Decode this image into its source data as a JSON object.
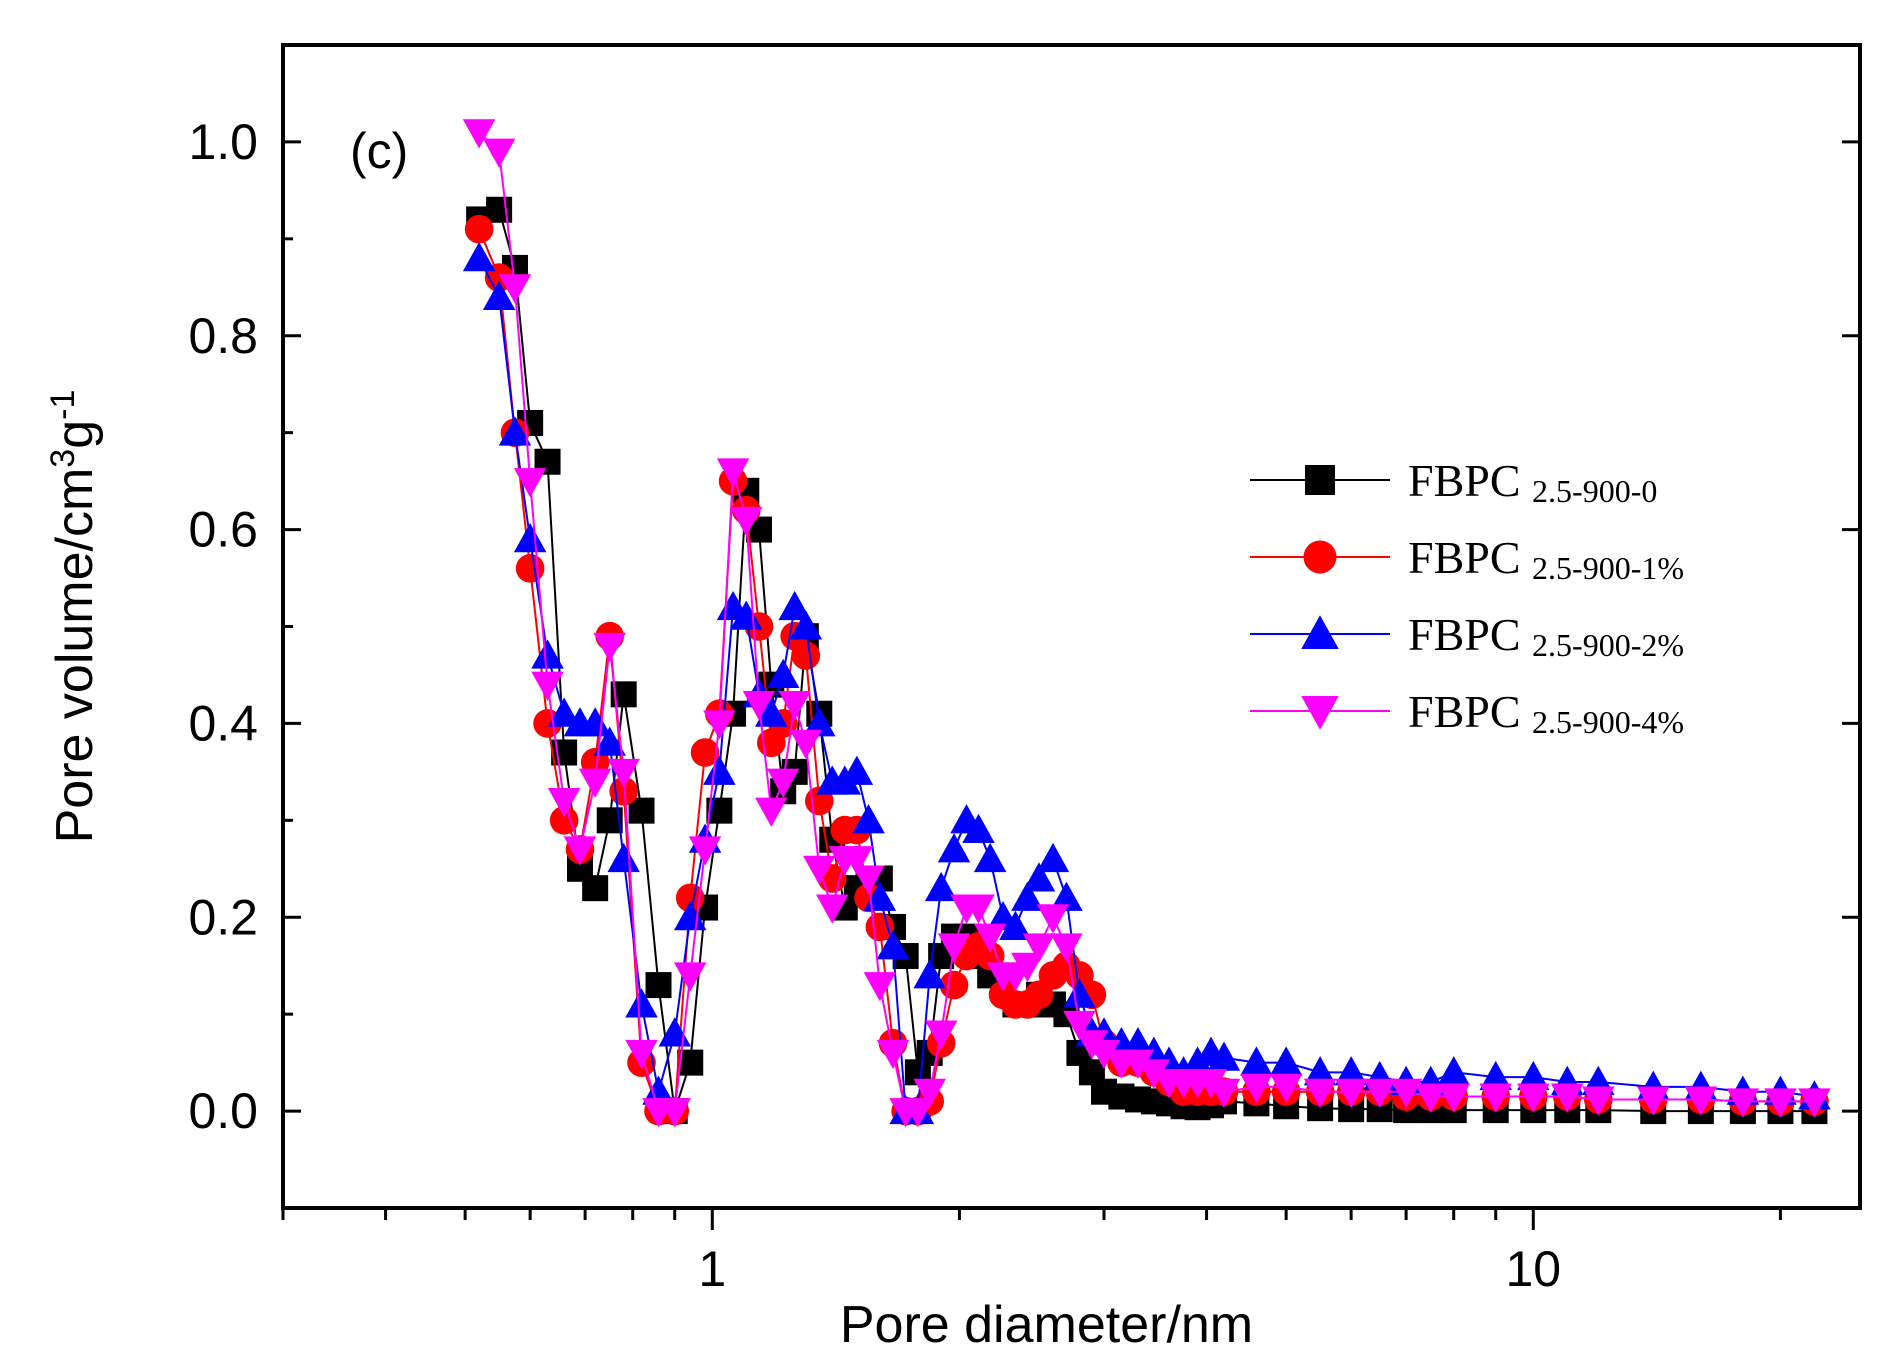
{
  "chart_data": {
    "type": "scatter",
    "panel_label": "(c)",
    "title": "",
    "xlabel": "Pore diameter/nm",
    "ylabel": {
      "prefix": "Pore volume/cm",
      "sup1": "3",
      "mid": "g",
      "sup2": "-1"
    },
    "xscale": "log",
    "xlim": [
      0.3,
      25
    ],
    "ylim": [
      -0.1,
      1.1
    ],
    "xticks": [
      {
        "value": 1,
        "label": "1"
      },
      {
        "value": 10,
        "label": "10"
      }
    ],
    "yticks": [
      {
        "value": 0.0,
        "label": "0.0"
      },
      {
        "value": 0.2,
        "label": "0.2"
      },
      {
        "value": 0.4,
        "label": "0.4"
      },
      {
        "value": 0.6,
        "label": "0.6"
      },
      {
        "value": 0.8,
        "label": "0.8"
      },
      {
        "value": 1.0,
        "label": "1.0"
      }
    ],
    "legend_position": "right, upper-middle",
    "series": [
      {
        "name": "FBPC",
        "subscript": "2.5-900-0",
        "color": "#000000",
        "marker": "square",
        "x": [
          0.52,
          0.55,
          0.575,
          0.6,
          0.63,
          0.66,
          0.69,
          0.72,
          0.75,
          0.78,
          0.82,
          0.86,
          0.9,
          0.94,
          0.98,
          1.02,
          1.06,
          1.1,
          1.14,
          1.18,
          1.22,
          1.26,
          1.3,
          1.35,
          1.4,
          1.45,
          1.5,
          1.55,
          1.6,
          1.66,
          1.72,
          1.78,
          1.84,
          1.9,
          1.97,
          2.04,
          2.11,
          2.18,
          2.26,
          2.34,
          2.42,
          2.5,
          2.6,
          2.7,
          2.8,
          2.9,
          3.0,
          3.15,
          3.3,
          3.45,
          3.6,
          3.75,
          3.9,
          4.05,
          4.2,
          4.6,
          5.0,
          5.5,
          6.0,
          6.5,
          7.0,
          7.5,
          8.0,
          9.0,
          10,
          11,
          12,
          14,
          16,
          18,
          20,
          22
        ],
        "y": [
          0.92,
          0.93,
          0.87,
          0.71,
          0.67,
          0.37,
          0.25,
          0.23,
          0.3,
          0.43,
          0.31,
          0.13,
          0.0,
          0.05,
          0.21,
          0.31,
          0.41,
          0.64,
          0.6,
          0.44,
          0.33,
          0.35,
          0.49,
          0.41,
          0.28,
          0.21,
          0.23,
          0.24,
          0.24,
          0.19,
          0.16,
          0.04,
          0.06,
          0.16,
          0.18,
          0.18,
          0.16,
          0.14,
          0.13,
          0.11,
          0.11,
          0.12,
          0.11,
          0.1,
          0.06,
          0.04,
          0.02,
          0.015,
          0.012,
          0.01,
          0.008,
          0.005,
          0.004,
          0.006,
          0.01,
          0.008,
          0.005,
          0.003,
          0.002,
          0.002,
          0.001,
          0.001,
          0.001,
          0.001,
          0.001,
          0.001,
          0.001,
          0.0,
          0.0,
          0.0,
          0.0,
          0.0
        ]
      },
      {
        "name": "FBPC",
        "subscript": "2.5-900-1%",
        "color": "#ff0000",
        "marker": "circle",
        "x": [
          0.52,
          0.55,
          0.575,
          0.6,
          0.63,
          0.66,
          0.69,
          0.72,
          0.75,
          0.78,
          0.82,
          0.86,
          0.9,
          0.94,
          0.98,
          1.02,
          1.06,
          1.1,
          1.14,
          1.18,
          1.22,
          1.26,
          1.3,
          1.35,
          1.4,
          1.45,
          1.5,
          1.55,
          1.6,
          1.66,
          1.72,
          1.78,
          1.84,
          1.9,
          1.97,
          2.04,
          2.11,
          2.18,
          2.26,
          2.34,
          2.42,
          2.5,
          2.6,
          2.7,
          2.8,
          2.9,
          3.0,
          3.15,
          3.3,
          3.45,
          3.6,
          3.75,
          3.9,
          4.05,
          4.2,
          4.6,
          5.0,
          5.5,
          6.0,
          6.5,
          7.0,
          7.5,
          8.0,
          9.0,
          10,
          11,
          12,
          14,
          16,
          18,
          20,
          22
        ],
        "y": [
          0.91,
          0.86,
          0.7,
          0.56,
          0.4,
          0.3,
          0.27,
          0.36,
          0.49,
          0.33,
          0.05,
          0.0,
          0.0,
          0.22,
          0.37,
          0.41,
          0.65,
          0.62,
          0.5,
          0.38,
          0.4,
          0.49,
          0.47,
          0.32,
          0.24,
          0.29,
          0.29,
          0.22,
          0.19,
          0.07,
          0.0,
          0.0,
          0.01,
          0.07,
          0.13,
          0.16,
          0.17,
          0.16,
          0.12,
          0.11,
          0.11,
          0.12,
          0.14,
          0.15,
          0.14,
          0.12,
          0.07,
          0.05,
          0.05,
          0.04,
          0.03,
          0.02,
          0.02,
          0.02,
          0.02,
          0.02,
          0.02,
          0.02,
          0.02,
          0.02,
          0.015,
          0.015,
          0.015,
          0.015,
          0.015,
          0.015,
          0.012,
          0.012,
          0.012,
          0.01,
          0.01,
          0.01
        ]
      },
      {
        "name": "FBPC",
        "subscript": "2.5-900-2%",
        "color": "#0000ff",
        "marker": "triangle-up",
        "x": [
          0.52,
          0.55,
          0.575,
          0.6,
          0.63,
          0.66,
          0.69,
          0.72,
          0.75,
          0.78,
          0.82,
          0.86,
          0.9,
          0.94,
          0.98,
          1.02,
          1.06,
          1.1,
          1.14,
          1.18,
          1.22,
          1.26,
          1.3,
          1.35,
          1.4,
          1.45,
          1.5,
          1.55,
          1.6,
          1.66,
          1.72,
          1.78,
          1.84,
          1.9,
          1.97,
          2.04,
          2.11,
          2.18,
          2.26,
          2.34,
          2.42,
          2.5,
          2.6,
          2.7,
          2.8,
          2.9,
          3.0,
          3.15,
          3.3,
          3.45,
          3.6,
          3.75,
          3.9,
          4.05,
          4.2,
          4.6,
          5.0,
          5.5,
          6.0,
          6.5,
          7.0,
          7.5,
          8.0,
          9.0,
          10,
          11,
          12,
          14,
          16,
          18,
          20,
          22
        ],
        "y": [
          0.88,
          0.84,
          0.7,
          0.59,
          0.47,
          0.41,
          0.4,
          0.4,
          0.38,
          0.26,
          0.11,
          0.02,
          0.08,
          0.2,
          0.28,
          0.35,
          0.52,
          0.51,
          0.43,
          0.41,
          0.45,
          0.52,
          0.5,
          0.4,
          0.34,
          0.34,
          0.35,
          0.3,
          0.22,
          0.17,
          0.0,
          0.0,
          0.14,
          0.23,
          0.27,
          0.3,
          0.29,
          0.26,
          0.2,
          0.19,
          0.22,
          0.24,
          0.26,
          0.22,
          0.12,
          0.08,
          0.08,
          0.07,
          0.07,
          0.06,
          0.05,
          0.04,
          0.05,
          0.06,
          0.055,
          0.05,
          0.05,
          0.04,
          0.04,
          0.035,
          0.03,
          0.03,
          0.04,
          0.035,
          0.035,
          0.03,
          0.03,
          0.025,
          0.025,
          0.02,
          0.02,
          0.015
        ]
      },
      {
        "name": "FBPC",
        "subscript": "2.5-900-4%",
        "color": "#ff00ff",
        "marker": "triangle-down",
        "x": [
          0.52,
          0.55,
          0.575,
          0.6,
          0.63,
          0.66,
          0.69,
          0.72,
          0.75,
          0.78,
          0.82,
          0.86,
          0.9,
          0.94,
          0.98,
          1.02,
          1.06,
          1.1,
          1.14,
          1.18,
          1.22,
          1.26,
          1.3,
          1.35,
          1.4,
          1.45,
          1.5,
          1.55,
          1.6,
          1.66,
          1.72,
          1.78,
          1.84,
          1.9,
          1.97,
          2.04,
          2.11,
          2.18,
          2.26,
          2.34,
          2.42,
          2.5,
          2.6,
          2.7,
          2.8,
          2.9,
          3.0,
          3.15,
          3.3,
          3.45,
          3.6,
          3.75,
          3.9,
          4.05,
          4.2,
          4.6,
          5.0,
          5.5,
          6.0,
          6.5,
          7.0,
          7.5,
          8.0,
          9.0,
          10,
          11,
          12,
          14,
          16,
          18,
          20,
          22
        ],
        "y": [
          1.01,
          0.99,
          0.85,
          0.65,
          0.44,
          0.32,
          0.27,
          0.34,
          0.48,
          0.35,
          0.06,
          0.0,
          0.0,
          0.14,
          0.27,
          0.4,
          0.66,
          0.61,
          0.42,
          0.31,
          0.34,
          0.42,
          0.38,
          0.25,
          0.21,
          0.26,
          0.26,
          0.24,
          0.13,
          0.06,
          0.0,
          0.0,
          0.02,
          0.08,
          0.17,
          0.21,
          0.21,
          0.18,
          0.14,
          0.14,
          0.15,
          0.17,
          0.2,
          0.17,
          0.09,
          0.07,
          0.06,
          0.05,
          0.05,
          0.04,
          0.03,
          0.03,
          0.03,
          0.03,
          0.02,
          0.025,
          0.025,
          0.02,
          0.02,
          0.02,
          0.02,
          0.015,
          0.015,
          0.015,
          0.015,
          0.015,
          0.012,
          0.012,
          0.012,
          0.01,
          0.01,
          0.01
        ]
      }
    ]
  }
}
